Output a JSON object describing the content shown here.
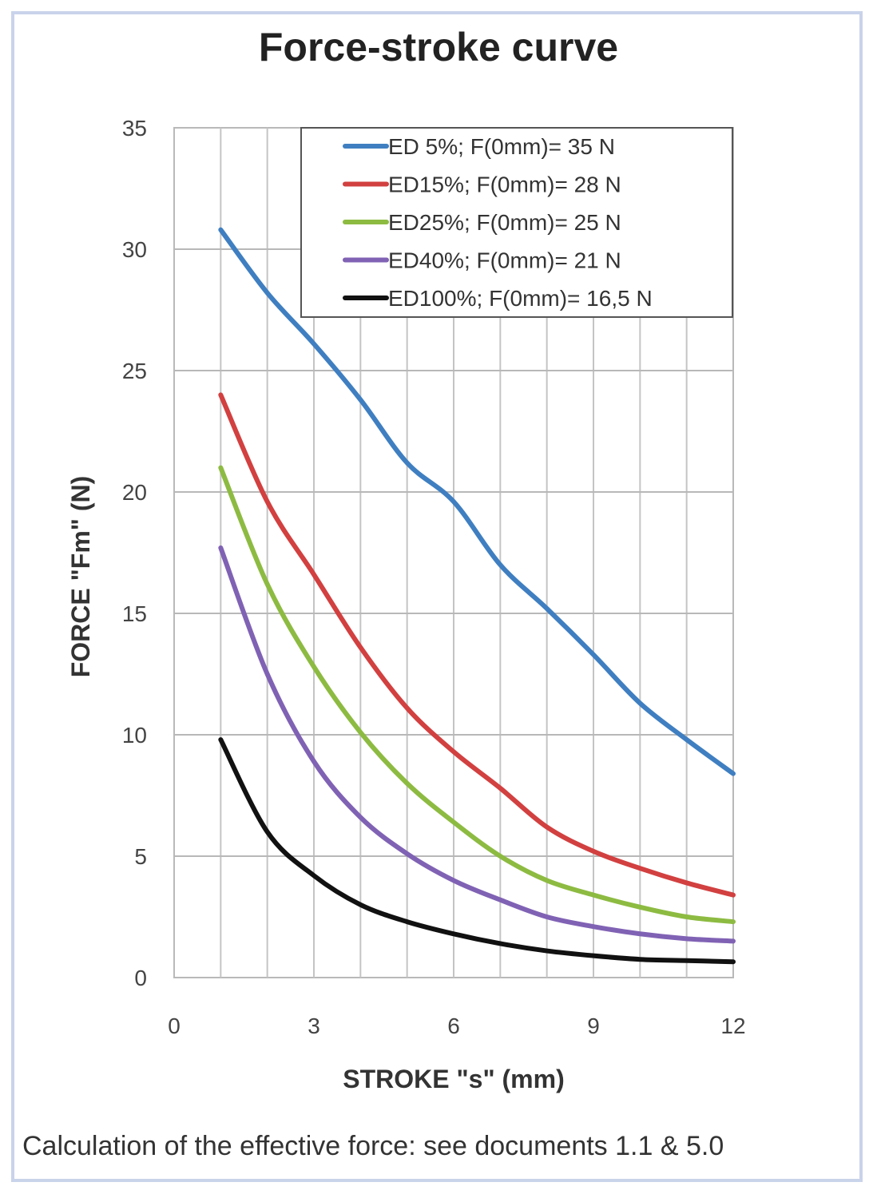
{
  "header": {
    "title": "Force-stroke curve"
  },
  "footer": {
    "note": "Calculation of the effective force: see documents 1.1 & 5.0"
  },
  "chart_data": {
    "type": "line",
    "title": "Force-stroke curve",
    "xlabel": "STROKE \"s\" (mm)",
    "ylabel": "FORCE \"Fm\" (N)",
    "xlim": [
      0,
      12
    ],
    "ylim": [
      0,
      35
    ],
    "x_ticks": [
      "0",
      "3",
      "6",
      "9",
      "12"
    ],
    "y_ticks": [
      "0",
      "5",
      "10",
      "15",
      "20",
      "25",
      "30",
      "35"
    ],
    "grid": true,
    "legend_position": "top-right",
    "series": [
      {
        "name": "ED 5%; F(0mm)= 35 N",
        "color": "#3f7fc1",
        "x": [
          1,
          2,
          3,
          4,
          5,
          6,
          7,
          8,
          9,
          10,
          11,
          12
        ],
        "y": [
          30.8,
          28.2,
          26.1,
          23.8,
          21.2,
          19.6,
          17.0,
          15.2,
          13.3,
          11.3,
          9.8,
          8.4
        ]
      },
      {
        "name": "ED15%; F(0mm)= 28 N",
        "color": "#d24040",
        "x": [
          1,
          2,
          3,
          4,
          5,
          6,
          7,
          8,
          9,
          10,
          11,
          12
        ],
        "y": [
          24.0,
          19.6,
          16.6,
          13.6,
          11.1,
          9.3,
          7.8,
          6.2,
          5.2,
          4.5,
          3.9,
          3.4
        ]
      },
      {
        "name": "ED25%; F(0mm)= 25 N",
        "color": "#8dbb42",
        "x": [
          1,
          2,
          3,
          4,
          5,
          6,
          7,
          8,
          9,
          10,
          11,
          12
        ],
        "y": [
          21.0,
          16.2,
          12.8,
          10.1,
          8.0,
          6.4,
          5.0,
          4.0,
          3.4,
          2.9,
          2.5,
          2.3
        ]
      },
      {
        "name": "ED40%; F(0mm)= 21 N",
        "color": "#8062b4",
        "x": [
          1,
          2,
          3,
          4,
          5,
          6,
          7,
          8,
          9,
          10,
          11,
          12
        ],
        "y": [
          17.7,
          12.5,
          8.9,
          6.6,
          5.1,
          4.0,
          3.2,
          2.5,
          2.1,
          1.8,
          1.6,
          1.5
        ]
      },
      {
        "name": "ED100%; F(0mm)= 16,5 N",
        "color": "#111111",
        "x": [
          1,
          2,
          3,
          4,
          5,
          6,
          7,
          8,
          9,
          10,
          11,
          12
        ],
        "y": [
          9.8,
          6.0,
          4.2,
          3.0,
          2.3,
          1.8,
          1.4,
          1.1,
          0.9,
          0.75,
          0.7,
          0.65
        ]
      }
    ]
  }
}
